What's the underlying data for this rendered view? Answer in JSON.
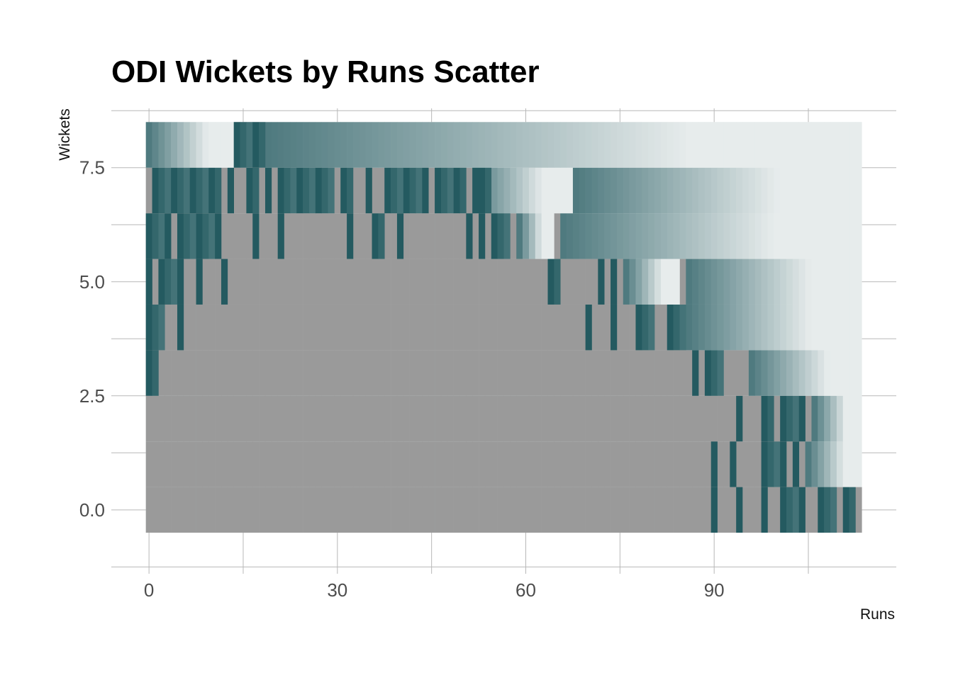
{
  "chart_data": {
    "type": "heatmap",
    "title": "ODI Wickets by Runs Scatter",
    "xlabel": "Runs",
    "ylabel": "Wickets",
    "x_ticks": [
      "0",
      "30",
      "60",
      "90"
    ],
    "x_tick_values": [
      0,
      30,
      60,
      90
    ],
    "y_ticks": [
      "0.0",
      "2.5",
      "5.0",
      "7.5"
    ],
    "y_tick_values": [
      0,
      2.5,
      5,
      7.5
    ],
    "xlim": [
      -6,
      119
    ],
    "ylim": [
      -1.4,
      8.8
    ],
    "grid": true,
    "background_color": "#9a9a9a",
    "cell_color": "#245a60",
    "faded_color": "#e7ecec",
    "rows": [
      {
        "wickets": 0,
        "tiles": [
          [
            90,
            90
          ],
          [
            94,
            94
          ],
          [
            98,
            98
          ],
          [
            101,
            104
          ],
          [
            107,
            109
          ],
          [
            111,
            112
          ]
        ],
        "fade": []
      },
      {
        "wickets": 1,
        "tiles": [
          [
            90,
            90
          ],
          [
            93,
            93
          ],
          [
            98,
            101
          ],
          [
            103,
            103
          ]
        ],
        "fade": [
          [
            105,
            113
          ]
        ]
      },
      {
        "wickets": 2,
        "tiles": [
          [
            94,
            94
          ],
          [
            98,
            99
          ],
          [
            101,
            104
          ]
        ],
        "fade": [
          [
            106,
            113
          ]
        ]
      },
      {
        "wickets": 3,
        "tiles": [
          [
            0,
            1
          ],
          [
            87,
            87
          ],
          [
            89,
            91
          ]
        ],
        "fade": [
          [
            96,
            113
          ]
        ]
      },
      {
        "wickets": 4,
        "tiles": [
          [
            0,
            2
          ],
          [
            5,
            5
          ],
          [
            70,
            70
          ],
          [
            74,
            74
          ],
          [
            78,
            80
          ],
          [
            83,
            85
          ]
        ],
        "fade": [
          [
            86,
            113
          ]
        ]
      },
      {
        "wickets": 5,
        "tiles": [
          [
            0,
            0
          ],
          [
            2,
            5
          ],
          [
            8,
            8
          ],
          [
            12,
            12
          ],
          [
            64,
            65
          ],
          [
            72,
            72
          ],
          [
            74,
            74
          ]
        ],
        "fade": [
          [
            76,
            84
          ],
          [
            86,
            113
          ]
        ]
      },
      {
        "wickets": 6,
        "tiles": [
          [
            0,
            3
          ],
          [
            5,
            11
          ],
          [
            17,
            17
          ],
          [
            21,
            21
          ],
          [
            32,
            32
          ],
          [
            36,
            37
          ],
          [
            40,
            40
          ],
          [
            51,
            51
          ],
          [
            53,
            53
          ],
          [
            55,
            57
          ]
        ],
        "fade": [
          [
            59,
            64
          ],
          [
            66,
            113
          ]
        ]
      },
      {
        "wickets": 7,
        "tiles": [
          [
            1,
            11
          ],
          [
            13,
            13
          ],
          [
            16,
            17
          ],
          [
            19,
            19
          ],
          [
            21,
            29
          ],
          [
            31,
            32
          ],
          [
            35,
            35
          ],
          [
            38,
            44
          ],
          [
            46,
            50
          ],
          [
            52,
            52
          ],
          [
            54,
            53
          ]
        ],
        "fade": [
          [
            52,
            67
          ],
          [
            68,
            113
          ]
        ]
      },
      {
        "wickets": 8,
        "tiles": [
          [
            14,
            18
          ]
        ],
        "fade": [
          [
            0,
            13
          ],
          [
            19,
            113
          ]
        ]
      }
    ]
  }
}
